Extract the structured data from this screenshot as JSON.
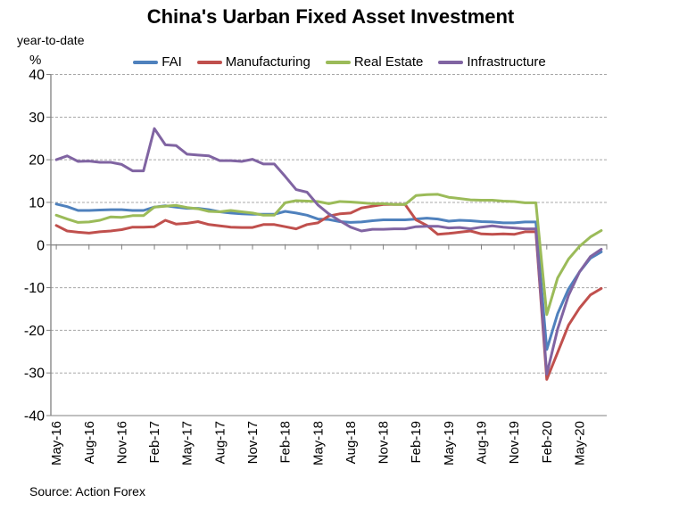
{
  "chart_data": {
    "type": "line",
    "title": "China's Uarban Fixed Asset Investment",
    "y_axis_annotation": "year-to-date",
    "y_axis_unit": "%",
    "source": "Source: Action Forex",
    "ylim": [
      -40,
      40
    ],
    "y_ticks": [
      40,
      30,
      20,
      10,
      0,
      -10,
      -20,
      -30,
      -40
    ],
    "grid": "horizontal-dashed",
    "legend_position": "top-center",
    "x_tick_every": 3,
    "x_tick_labels": [
      "May-16",
      "Aug-16",
      "Nov-16",
      "Feb-17",
      "May-17",
      "Aug-17",
      "Nov-17",
      "Feb-18",
      "May-18",
      "Aug-18",
      "Nov-18",
      "Feb-19",
      "May-19",
      "Aug-19",
      "Nov-19",
      "Feb-20",
      "May-20"
    ],
    "months": [
      "May-16",
      "Jun-16",
      "Jul-16",
      "Aug-16",
      "Sep-16",
      "Oct-16",
      "Nov-16",
      "Dec-16",
      "Jan-17",
      "Feb-17",
      "Mar-17",
      "Apr-17",
      "May-17",
      "Jun-17",
      "Jul-17",
      "Aug-17",
      "Sep-17",
      "Oct-17",
      "Nov-17",
      "Dec-17",
      "Jan-18",
      "Feb-18",
      "Mar-18",
      "Apr-18",
      "May-18",
      "Jun-18",
      "Jul-18",
      "Aug-18",
      "Sep-18",
      "Oct-18",
      "Nov-18",
      "Dec-18",
      "Jan-19",
      "Feb-19",
      "Mar-19",
      "Apr-19",
      "May-19",
      "Jun-19",
      "Jul-19",
      "Aug-19",
      "Sep-19",
      "Oct-19",
      "Nov-19",
      "Dec-19",
      "Jan-20",
      "Feb-20",
      "Mar-20",
      "Apr-20",
      "May-20",
      "Jun-20",
      "Jul-20"
    ],
    "series": [
      {
        "name": "FAI",
        "color": "#4F81BD",
        "values": [
          9.6,
          9.0,
          8.1,
          8.1,
          8.2,
          8.3,
          8.3,
          8.1,
          8.1,
          8.9,
          9.2,
          8.9,
          8.6,
          8.6,
          8.3,
          7.8,
          7.5,
          7.3,
          7.2,
          7.2,
          7.2,
          7.9,
          7.5,
          7.0,
          6.1,
          6.0,
          5.5,
          5.3,
          5.4,
          5.7,
          5.9,
          5.9,
          5.9,
          6.1,
          6.3,
          6.1,
          5.6,
          5.8,
          5.7,
          5.5,
          5.4,
          5.2,
          5.2,
          5.4,
          5.4,
          -24.5,
          -16.1,
          -10.3,
          -6.3,
          -3.1,
          -1.6
        ]
      },
      {
        "name": "Manufacturing",
        "color": "#C0504D",
        "values": [
          4.6,
          3.3,
          3.0,
          2.8,
          3.1,
          3.3,
          3.6,
          4.2,
          4.2,
          4.3,
          5.8,
          4.9,
          5.1,
          5.5,
          4.8,
          4.5,
          4.2,
          4.1,
          4.1,
          4.8,
          4.8,
          4.3,
          3.8,
          4.8,
          5.2,
          6.8,
          7.3,
          7.5,
          8.7,
          9.1,
          9.5,
          9.5,
          9.5,
          5.9,
          4.6,
          2.5,
          2.7,
          3.0,
          3.3,
          2.6,
          2.5,
          2.6,
          2.5,
          3.1,
          3.1,
          -31.5,
          -25.2,
          -18.8,
          -14.8,
          -11.7,
          -10.2
        ]
      },
      {
        "name": "Real Estate",
        "color": "#9BBB59",
        "values": [
          7.0,
          6.1,
          5.3,
          5.4,
          5.8,
          6.6,
          6.5,
          6.9,
          6.9,
          8.9,
          9.1,
          9.3,
          8.8,
          8.5,
          7.9,
          7.8,
          8.1,
          7.8,
          7.5,
          7.0,
          7.0,
          9.9,
          10.4,
          10.3,
          10.2,
          9.7,
          10.2,
          10.1,
          9.9,
          9.7,
          9.7,
          9.5,
          9.5,
          11.6,
          11.8,
          11.9,
          11.2,
          10.9,
          10.6,
          10.5,
          10.5,
          10.3,
          10.2,
          9.9,
          9.9,
          -16.3,
          -7.7,
          -3.3,
          -0.3,
          1.9,
          3.4
        ]
      },
      {
        "name": "Infrastructure",
        "color": "#8064A2",
        "values": [
          20.0,
          20.9,
          19.6,
          19.7,
          19.4,
          19.4,
          18.9,
          17.4,
          17.4,
          27.3,
          23.5,
          23.3,
          21.3,
          21.1,
          20.9,
          19.8,
          19.8,
          19.6,
          20.1,
          19.0,
          19.0,
          16.1,
          13.0,
          12.4,
          9.4,
          7.3,
          5.7,
          4.2,
          3.3,
          3.7,
          3.7,
          3.8,
          3.8,
          4.3,
          4.4,
          4.4,
          4.0,
          4.1,
          3.8,
          4.2,
          4.5,
          4.2,
          4.0,
          3.8,
          3.8,
          -30.3,
          -19.7,
          -11.8,
          -6.3,
          -2.7,
          -1.0
        ]
      }
    ]
  }
}
